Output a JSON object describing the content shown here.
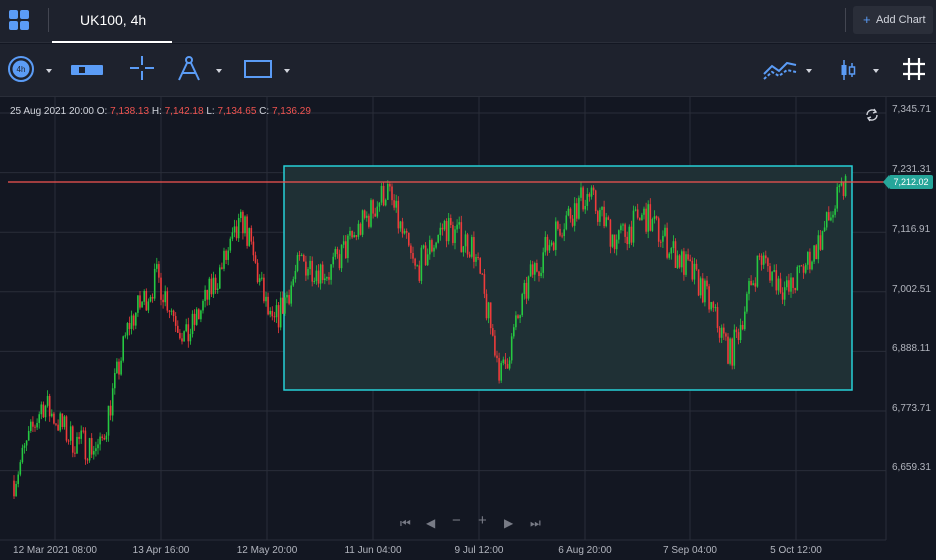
{
  "tab": {
    "title": "UK100, 4h"
  },
  "header": {
    "add_chart_label": "Add Chart"
  },
  "toolbar": {
    "interval": "4h",
    "items": [
      "interval-icon",
      "measure-icon",
      "crosshair-icon",
      "compass-icon",
      "rectangle-icon",
      "indicators-icon",
      "candles-icon",
      "grid-icon"
    ]
  },
  "ohlc": {
    "datetime": "25 Aug 2021 20:00",
    "o_label": "O:",
    "o": "7,138.13",
    "h_label": "H:",
    "h": "7,142.18",
    "l_label": "L:",
    "l": "7,134.65",
    "c_label": "C:",
    "c": "7,136.29"
  },
  "colors": {
    "up": "#26c941",
    "down": "#ef3b3b",
    "rect_border": "#26d0d7",
    "price_line": "#ef5350",
    "accent": "#5b9cf6"
  },
  "chart_data": {
    "type": "candlestick",
    "instrument": "UK100",
    "interval": "4h",
    "y_ticks": [
      "7,345.71",
      "7,231.31",
      "7,116.91",
      "7,002.51",
      "6,888.11",
      "6,773.71",
      "6,659.31"
    ],
    "ylim": [
      6600,
      7360
    ],
    "x_ticks": [
      "12 Mar 2021 08:00",
      "13 Apr 16:00",
      "12 May 20:00",
      "11 Jun 04:00",
      "9 Jul 12:00",
      "6 Aug 20:00",
      "7 Sep 04:00",
      "5 Oct 12:00"
    ],
    "last_price": "7,212.02",
    "price_line": 7212.02,
    "range_box": {
      "top": 7229,
      "bottom": 6818,
      "start": "late May 2021",
      "end": "late Oct 2021"
    },
    "series_waypoints": [
      {
        "date": "Mar 2021",
        "value": 6640
      },
      {
        "date": "mid Mar",
        "value": 6790
      },
      {
        "date": "late Mar",
        "value": 6720
      },
      {
        "date": "early Apr",
        "value": 6700
      },
      {
        "date": "13 Apr",
        "value": 6940
      },
      {
        "date": "mid Apr",
        "value": 7030
      },
      {
        "date": "late Apr",
        "value": 6910
      },
      {
        "date": "early May",
        "value": 7020
      },
      {
        "date": "10 May",
        "value": 7140
      },
      {
        "date": "12 May",
        "value": 6930
      },
      {
        "date": "mid May",
        "value": 7060
      },
      {
        "date": "early Jun",
        "value": 7040
      },
      {
        "date": "9 Jun",
        "value": 7120
      },
      {
        "date": "mid Jun",
        "value": 7200
      },
      {
        "date": "late Jun",
        "value": 7040
      },
      {
        "date": "early Jul",
        "value": 7130
      },
      {
        "date": "9 Jul",
        "value": 7090
      },
      {
        "date": "19 Jul",
        "value": 6840
      },
      {
        "date": "late Jul",
        "value": 7030
      },
      {
        "date": "early Aug",
        "value": 7130
      },
      {
        "date": "6 Aug",
        "value": 7190
      },
      {
        "date": "mid Aug",
        "value": 7100
      },
      {
        "date": "late Aug",
        "value": 7150
      },
      {
        "date": "early Sep",
        "value": 7080
      },
      {
        "date": "mid Sep",
        "value": 7010
      },
      {
        "date": "late Sep",
        "value": 6880
      },
      {
        "date": "early Oct",
        "value": 7070
      },
      {
        "date": "5 Oct",
        "value": 7000
      },
      {
        "date": "mid Oct",
        "value": 7090
      },
      {
        "date": "late Oct",
        "value": 7210
      }
    ]
  }
}
